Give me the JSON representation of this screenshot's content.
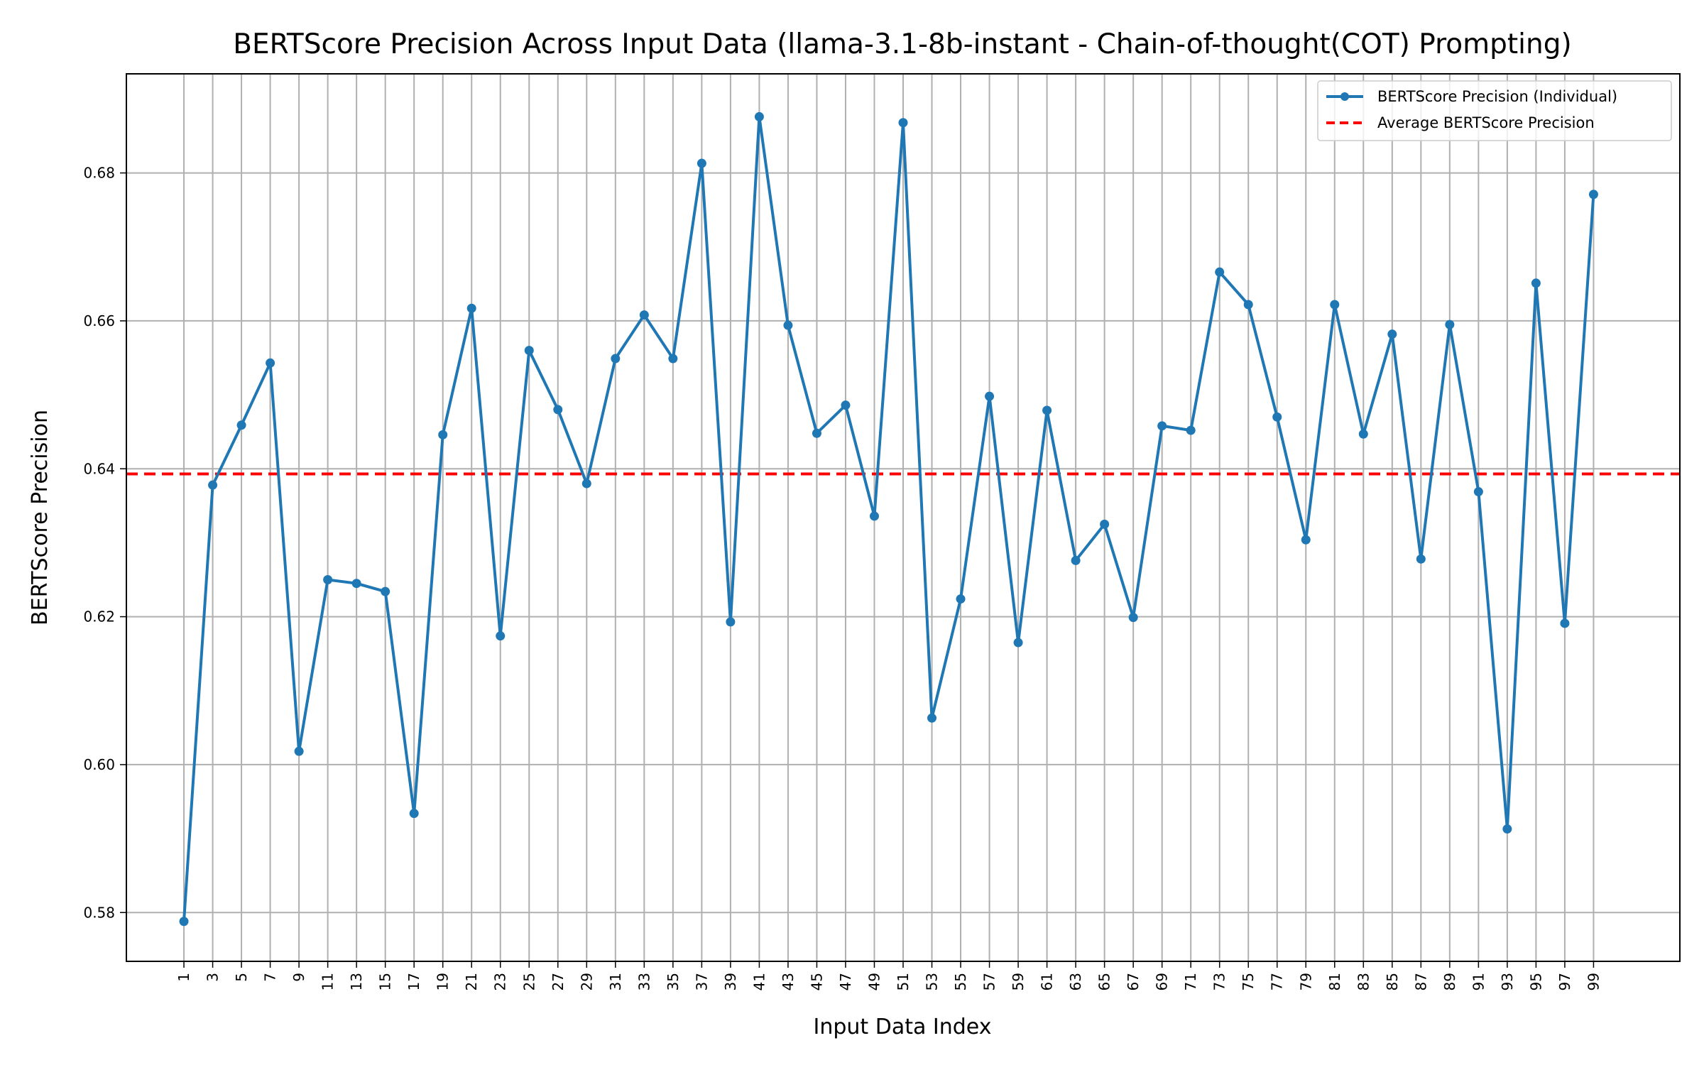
{
  "chart_data": {
    "type": "line",
    "title": "BERTScore Precision Across Input Data (llama-3.1-8b-instant - Chain-of-thought(COT) Prompting)",
    "xlabel": "Input Data Index",
    "ylabel": "BERTScore Precision",
    "x": [
      1,
      3,
      5,
      7,
      9,
      11,
      13,
      15,
      17,
      19,
      21,
      23,
      25,
      27,
      29,
      31,
      33,
      35,
      37,
      39,
      41,
      43,
      45,
      47,
      49,
      51,
      53,
      55,
      57,
      59,
      61,
      63,
      65,
      67,
      69,
      71,
      73,
      75,
      77,
      79,
      81,
      83,
      85,
      87,
      89,
      91,
      93,
      95,
      97,
      99
    ],
    "x_ticks": [
      "1",
      "3",
      "5",
      "7",
      "9",
      "11",
      "13",
      "15",
      "17",
      "19",
      "21",
      "23",
      "25",
      "27",
      "29",
      "31",
      "33",
      "35",
      "37",
      "39",
      "41",
      "43",
      "45",
      "47",
      "49",
      "51",
      "53",
      "55",
      "57",
      "59",
      "61",
      "63",
      "65",
      "67",
      "69",
      "71",
      "73",
      "75",
      "77",
      "79",
      "81",
      "83",
      "85",
      "87",
      "89",
      "91",
      "93",
      "95",
      "97",
      "99"
    ],
    "y_ticks": [
      "0.58",
      "0.60",
      "0.62",
      "0.64",
      "0.66",
      "0.68"
    ],
    "xlim": [
      -3,
      105
    ],
    "ylim": [
      0.5734,
      0.6934
    ],
    "grid": true,
    "legend_position": "top-right",
    "series": [
      {
        "name": "BERTScore Precision (Individual)",
        "color": "#1f77b4",
        "style": "line-marker",
        "values": [
          0.5788,
          0.6378,
          0.6459,
          0.6543,
          0.6018,
          0.625,
          0.6245,
          0.6234,
          0.5934,
          0.6446,
          0.6617,
          0.6174,
          0.656,
          0.648,
          0.638,
          0.6549,
          0.6608,
          0.6549,
          0.6813,
          0.6193,
          0.6876,
          0.6594,
          0.6448,
          0.6486,
          0.6336,
          0.6868,
          0.6063,
          0.6224,
          0.6498,
          0.6165,
          0.6479,
          0.6276,
          0.6325,
          0.6199,
          0.6458,
          0.6452,
          0.6666,
          0.6622,
          0.647,
          0.6304,
          0.6622,
          0.6447,
          0.6582,
          0.6278,
          0.6595,
          0.6369,
          0.5913,
          0.6651,
          0.6191,
          0.6771
        ]
      },
      {
        "name": "Average BERTScore Precision",
        "color": "#ff0000",
        "style": "dashed",
        "value": 0.6393
      }
    ]
  }
}
